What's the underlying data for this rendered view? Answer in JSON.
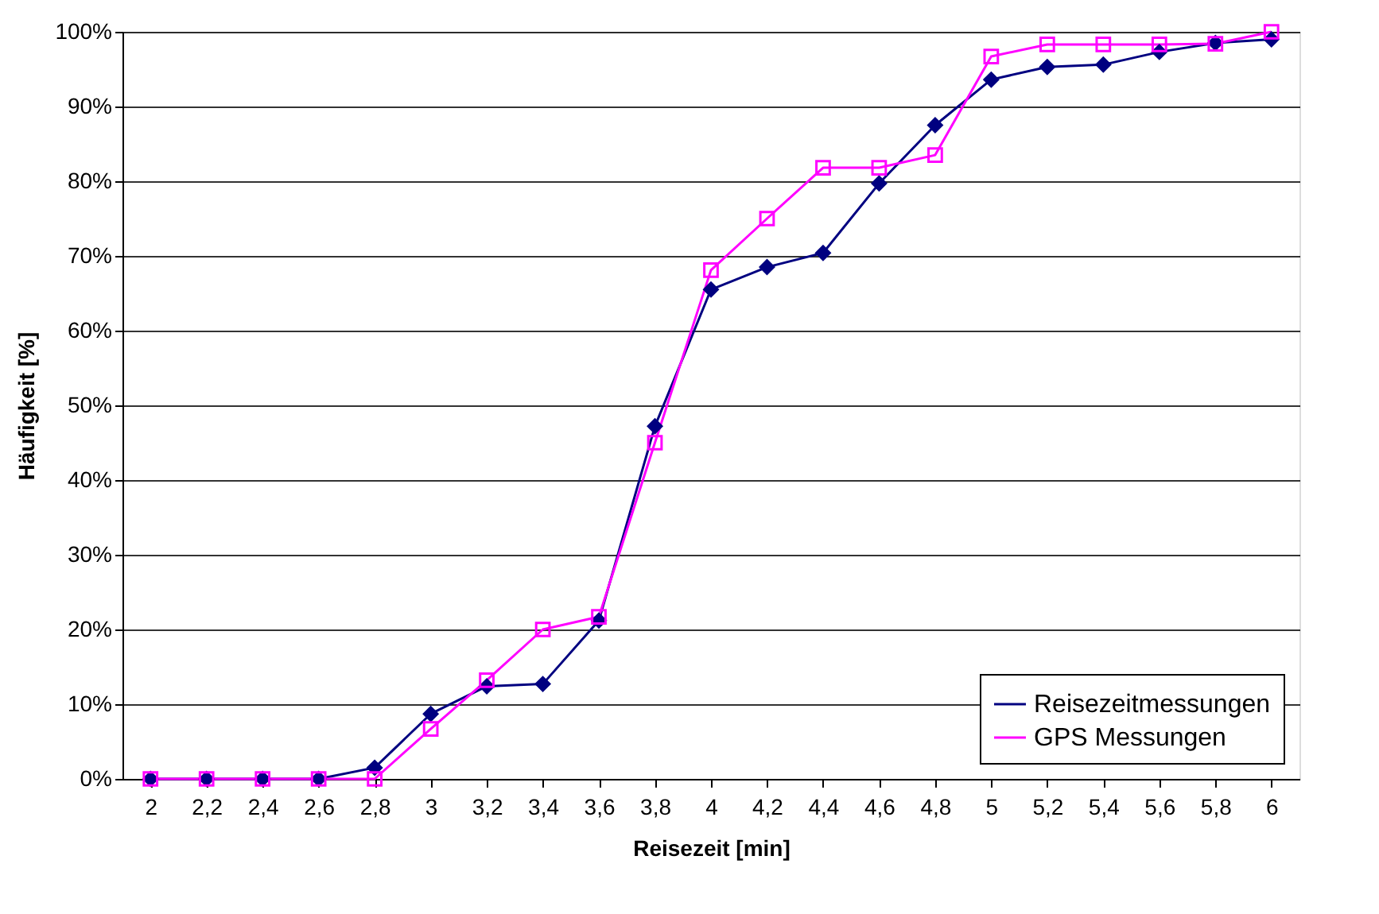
{
  "chart_data": {
    "type": "line",
    "xlabel": "Reisezeit [min]",
    "ylabel": "Häufigkeit [%]",
    "categories": [
      "2",
      "2,2",
      "2,4",
      "2,6",
      "2,8",
      "3",
      "3,2",
      "3,4",
      "3,6",
      "3,8",
      "4",
      "4,2",
      "4,4",
      "4,6",
      "4,8",
      "5",
      "5,2",
      "5,4",
      "5,6",
      "5,8",
      "6"
    ],
    "series": [
      {
        "name": "Reisezeitmessungen",
        "color": "#000080",
        "marker": "diamond",
        "values": [
          0,
          0,
          0,
          0,
          1.5,
          8.7,
          12.4,
          12.7,
          21.2,
          47.2,
          65.5,
          68.5,
          70.4,
          79.7,
          87.5,
          93.6,
          95.3,
          95.6,
          97.3,
          98.5,
          99.0
        ]
      },
      {
        "name": "GPS Messungen",
        "color": "#ff00ff",
        "marker": "square",
        "values": [
          0,
          0,
          0,
          0,
          0,
          6.7,
          13.2,
          20.0,
          21.7,
          45.0,
          68.1,
          75.0,
          81.8,
          81.8,
          83.5,
          96.7,
          98.3,
          98.3,
          98.3,
          98.4,
          100.0
        ]
      }
    ],
    "ylim": [
      0,
      100
    ],
    "yticks": [
      {
        "value": 0,
        "label": "0%"
      },
      {
        "value": 10,
        "label": "10%"
      },
      {
        "value": 20,
        "label": "20%"
      },
      {
        "value": 30,
        "label": "30%"
      },
      {
        "value": 40,
        "label": "40%"
      },
      {
        "value": 50,
        "label": "50%"
      },
      {
        "value": 60,
        "label": "60%"
      },
      {
        "value": 70,
        "label": "70%"
      },
      {
        "value": 80,
        "label": "80%"
      },
      {
        "value": 90,
        "label": "90%"
      },
      {
        "value": 100,
        "label": "100%"
      }
    ],
    "grid": "y",
    "legend": "bottom right",
    "line_style": "solid"
  }
}
